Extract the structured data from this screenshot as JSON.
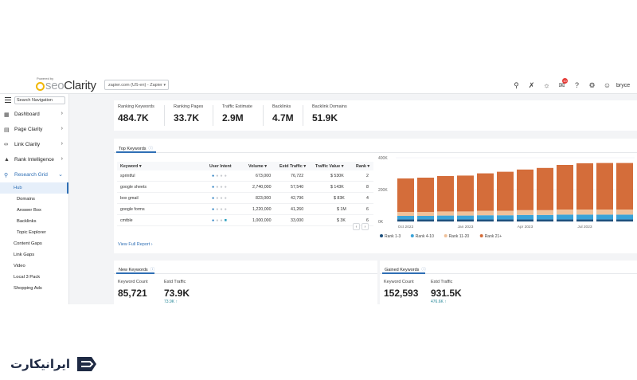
{
  "header": {
    "powered_by": "Powered by",
    "logo_seo": "seo",
    "logo_clarity": "Clarity",
    "site_selector": "zapier.com (US-en) - Zapier",
    "notification_count": "10",
    "user_name": "bryce"
  },
  "sidebar": {
    "search_placeholder": "Search Navigation",
    "items": [
      {
        "label": "Dashboard",
        "icon": "dashboard-icon"
      },
      {
        "label": "Page Clarity",
        "icon": "page-icon"
      },
      {
        "label": "Link Clarity",
        "icon": "link-icon"
      },
      {
        "label": "Rank Intelligence",
        "icon": "rank-icon"
      },
      {
        "label": "Research Grid",
        "icon": "search-icon"
      }
    ],
    "subitems": [
      {
        "label": "Hub"
      },
      {
        "label": "Domains"
      },
      {
        "label": "Answer Box"
      },
      {
        "label": "Backlinks"
      },
      {
        "label": "Topic Explorer"
      },
      {
        "label": "Content Gaps"
      },
      {
        "label": "Link Gaps"
      },
      {
        "label": "Video"
      },
      {
        "label": "Local 3 Pack"
      },
      {
        "label": "Shopping Ads"
      }
    ]
  },
  "metrics": [
    {
      "label": "Ranking Keywords",
      "value": "484.7K"
    },
    {
      "label": "Ranking Pages",
      "value": "33.7K"
    },
    {
      "label": "Traffic Estimate",
      "value": "2.9M"
    },
    {
      "label": "Backlinks",
      "value": "4.7M"
    },
    {
      "label": "Backlink Domains",
      "value": "51.9K"
    }
  ],
  "top_keywords": {
    "tab_label": "Top Keywords",
    "columns": [
      "Keyword",
      "User Intent",
      "Volume",
      "Estd Traffic",
      "Traffic Value",
      "Rank"
    ],
    "rows": [
      {
        "keyword": "sprintful",
        "volume": "673,000",
        "traffic": "76,722",
        "value": "$ 530K",
        "rank": "2"
      },
      {
        "keyword": "google sheets",
        "volume": "2,740,000",
        "traffic": "57,540",
        "value": "$ 143K",
        "rank": "8"
      },
      {
        "keyword": "box gmail",
        "volume": "823,000",
        "traffic": "42,796",
        "value": "$ 83K",
        "rank": "4"
      },
      {
        "keyword": "google forms",
        "volume": "1,220,000",
        "traffic": "41,260",
        "value": "$ 1M",
        "rank": "6"
      },
      {
        "keyword": "cmtble",
        "volume": "1,000,000",
        "traffic": "33,000",
        "value": "$ 3K",
        "rank": "6"
      }
    ],
    "view_full_report": "View Full Report"
  },
  "chart_data": {
    "type": "bar",
    "stacked": true,
    "y_ticks": [
      "400K",
      "200K",
      "0K"
    ],
    "ylim": [
      0,
      400000
    ],
    "x_tick_labels": [
      "Oct 2022",
      "Jan 2023",
      "Apr 2023",
      "Jul 2023"
    ],
    "categories": [
      "m1",
      "m2",
      "m3",
      "m4",
      "m5",
      "m6",
      "m7",
      "m8",
      "m9",
      "m10",
      "m11",
      "m12"
    ],
    "series": [
      {
        "name": "Rank 1-3",
        "color": "#1d4f7c",
        "values": [
          13000,
          13000,
          13000,
          13000,
          13000,
          13000,
          13000,
          13000,
          13000,
          13000,
          13000,
          13000
        ]
      },
      {
        "name": "Rank 4-10",
        "color": "#3ba3d8",
        "values": [
          22000,
          22000,
          24000,
          24000,
          26000,
          26000,
          28000,
          28000,
          30000,
          30000,
          30000,
          30000
        ]
      },
      {
        "name": "Rank 11-20",
        "color": "#f0c19a",
        "values": [
          25000,
          25000,
          26000,
          26000,
          28000,
          28000,
          30000,
          30000,
          32000,
          32000,
          32000,
          32000
        ]
      },
      {
        "name": "Rank 21+",
        "color": "#d46d3a",
        "values": [
          210000,
          215000,
          222000,
          225000,
          235000,
          245000,
          255000,
          265000,
          280000,
          290000,
          292000,
          292000
        ]
      }
    ],
    "legend_position": "bottom-left",
    "grid": true
  },
  "new_keywords": {
    "tab_label": "New Keywords",
    "count_label": "Keyword Count",
    "count_value": "85,721",
    "traffic_label": "Estd Traffic",
    "traffic_value": "73.9K",
    "traffic_delta": "73.9K"
  },
  "gained_keywords": {
    "tab_label": "Gained Keywords",
    "count_label": "Keyword Count",
    "count_value": "152,593",
    "traffic_label": "Estd Traffic",
    "traffic_value": "931.5K",
    "traffic_delta": "476.6K"
  },
  "brand": {
    "name": "ایرانیکارت"
  }
}
